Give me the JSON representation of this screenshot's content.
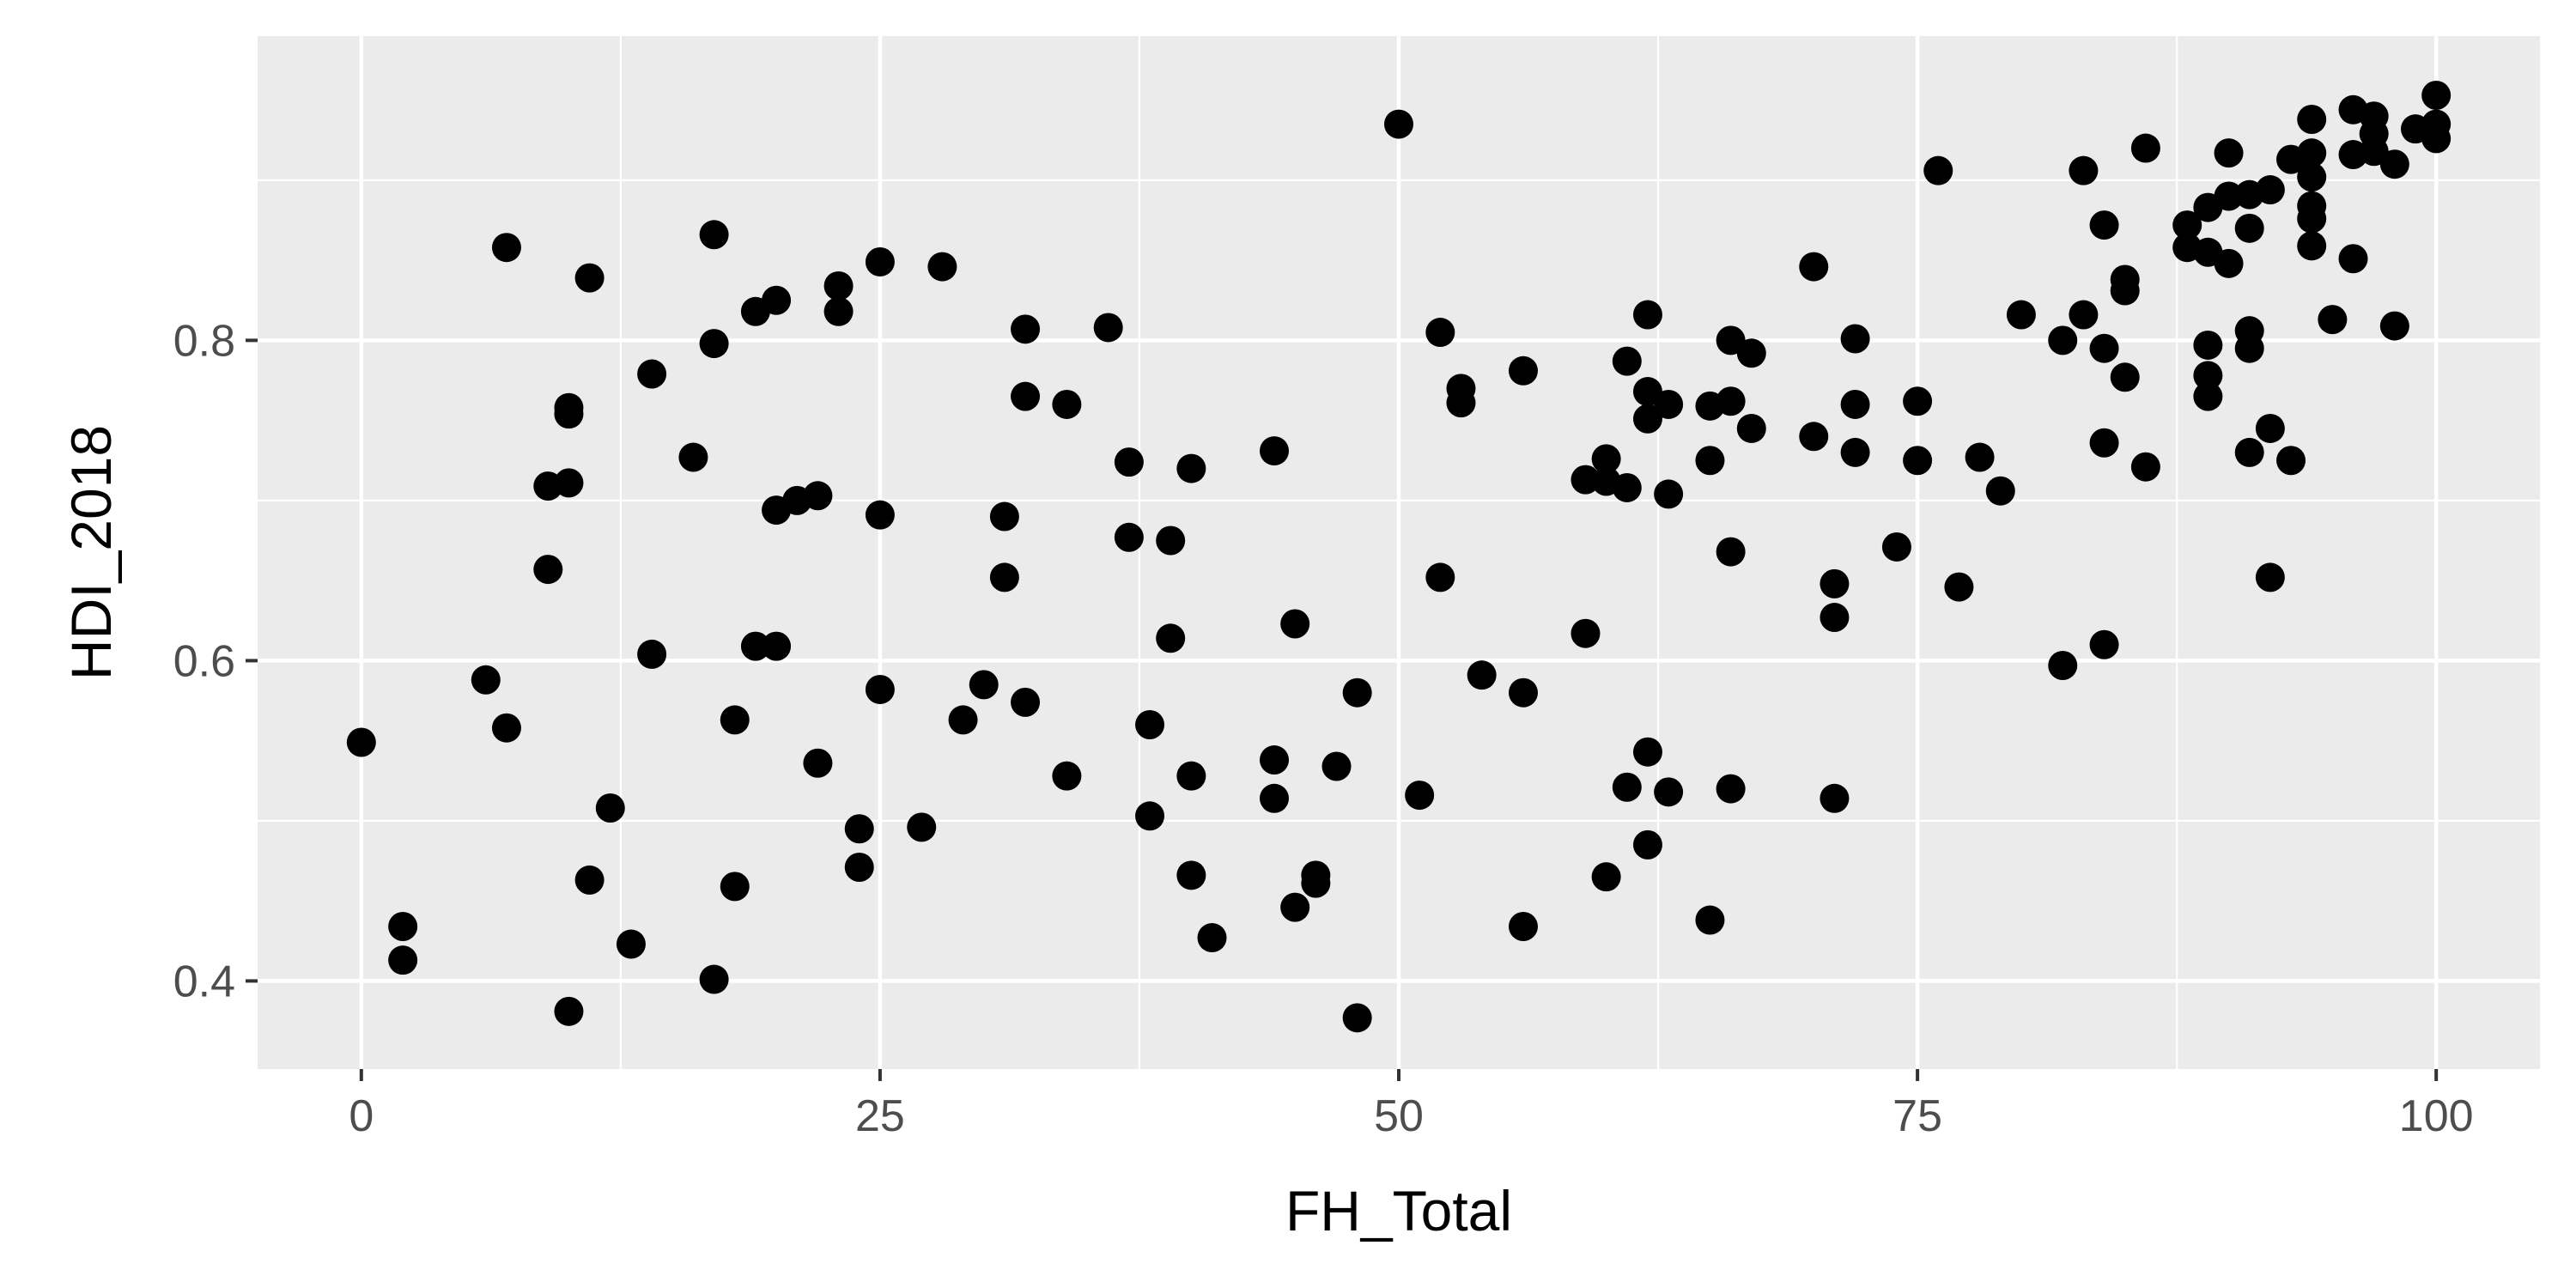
{
  "chart_data": {
    "type": "scatter",
    "title": "",
    "xlabel": "FH_Total",
    "ylabel": "HDI_2018",
    "xlim": [
      -5,
      105
    ],
    "ylim": [
      0.345,
      0.99
    ],
    "x_ticks": [
      0,
      25,
      50,
      75,
      100
    ],
    "y_ticks": [
      0.4,
      0.6,
      0.8
    ],
    "x_tick_labels": [
      "0",
      "25",
      "50",
      "75",
      "100"
    ],
    "y_tick_labels": [
      "0.4",
      "0.6",
      "0.8"
    ],
    "grid": true,
    "panel_background": "#ebebeb",
    "grid_color": "#ffffff",
    "point_color": "#000000",
    "points": [
      [
        0,
        0.549
      ],
      [
        2,
        0.434
      ],
      [
        2,
        0.413
      ],
      [
        6,
        0.588
      ],
      [
        7,
        0.558
      ],
      [
        7,
        0.858
      ],
      [
        9,
        0.709
      ],
      [
        9,
        0.657
      ],
      [
        10,
        0.758
      ],
      [
        10,
        0.754
      ],
      [
        10,
        0.711
      ],
      [
        10,
        0.381
      ],
      [
        11,
        0.839
      ],
      [
        11,
        0.463
      ],
      [
        12,
        0.508
      ],
      [
        13,
        0.423
      ],
      [
        14,
        0.779
      ],
      [
        14,
        0.604
      ],
      [
        16,
        0.727
      ],
      [
        17,
        0.866
      ],
      [
        17,
        0.798
      ],
      [
        17,
        0.401
      ],
      [
        18,
        0.563
      ],
      [
        18,
        0.459
      ],
      [
        19,
        0.818
      ],
      [
        19,
        0.609
      ],
      [
        20,
        0.825
      ],
      [
        20,
        0.694
      ],
      [
        20,
        0.609
      ],
      [
        21,
        0.7
      ],
      [
        22,
        0.703
      ],
      [
        22,
        0.536
      ],
      [
        23,
        0.834
      ],
      [
        23,
        0.818
      ],
      [
        24,
        0.495
      ],
      [
        24,
        0.471
      ],
      [
        25,
        0.849
      ],
      [
        25,
        0.691
      ],
      [
        25,
        0.582
      ],
      [
        27,
        0.496
      ],
      [
        28,
        0.846
      ],
      [
        29,
        0.563
      ],
      [
        30,
        0.585
      ],
      [
        31,
        0.69
      ],
      [
        31,
        0.652
      ],
      [
        32,
        0.807
      ],
      [
        32,
        0.765
      ],
      [
        32,
        0.574
      ],
      [
        34,
        0.76
      ],
      [
        34,
        0.528
      ],
      [
        36,
        0.808
      ],
      [
        37,
        0.724
      ],
      [
        37,
        0.677
      ],
      [
        38,
        0.56
      ],
      [
        38,
        0.503
      ],
      [
        39,
        0.675
      ],
      [
        39,
        0.614
      ],
      [
        40,
        0.72
      ],
      [
        40,
        0.528
      ],
      [
        40,
        0.466
      ],
      [
        41,
        0.427
      ],
      [
        44,
        0.731
      ],
      [
        44,
        0.538
      ],
      [
        44,
        0.514
      ],
      [
        45,
        0.623
      ],
      [
        45,
        0.446
      ],
      [
        46,
        0.466
      ],
      [
        46,
        0.461
      ],
      [
        47,
        0.534
      ],
      [
        48,
        0.58
      ],
      [
        48,
        0.377
      ],
      [
        50,
        0.935
      ],
      [
        51,
        0.516
      ],
      [
        52,
        0.805
      ],
      [
        52,
        0.652
      ],
      [
        53,
        0.77
      ],
      [
        53,
        0.761
      ],
      [
        54,
        0.591
      ],
      [
        56,
        0.781
      ],
      [
        56,
        0.58
      ],
      [
        56,
        0.434
      ],
      [
        59,
        0.713
      ],
      [
        59,
        0.617
      ],
      [
        60,
        0.726
      ],
      [
        60,
        0.712
      ],
      [
        60,
        0.465
      ],
      [
        61,
        0.787
      ],
      [
        61,
        0.708
      ],
      [
        61,
        0.521
      ],
      [
        62,
        0.816
      ],
      [
        62,
        0.768
      ],
      [
        62,
        0.751
      ],
      [
        62,
        0.543
      ],
      [
        62,
        0.485
      ],
      [
        63,
        0.76
      ],
      [
        63,
        0.704
      ],
      [
        63,
        0.518
      ],
      [
        65,
        0.759
      ],
      [
        65,
        0.725
      ],
      [
        65,
        0.438
      ],
      [
        66,
        0.8
      ],
      [
        66,
        0.762
      ],
      [
        66,
        0.668
      ],
      [
        66,
        0.52
      ],
      [
        67,
        0.792
      ],
      [
        67,
        0.745
      ],
      [
        70,
        0.846
      ],
      [
        70,
        0.74
      ],
      [
        71,
        0.648
      ],
      [
        71,
        0.627
      ],
      [
        71,
        0.514
      ],
      [
        72,
        0.801
      ],
      [
        72,
        0.76
      ],
      [
        72,
        0.73
      ],
      [
        74,
        0.671
      ],
      [
        75,
        0.762
      ],
      [
        75,
        0.725
      ],
      [
        76,
        0.906
      ],
      [
        77,
        0.646
      ],
      [
        78,
        0.727
      ],
      [
        79,
        0.706
      ],
      [
        80,
        0.816
      ],
      [
        82,
        0.8
      ],
      [
        82,
        0.597
      ],
      [
        83,
        0.906
      ],
      [
        83,
        0.816
      ],
      [
        84,
        0.872
      ],
      [
        84,
        0.795
      ],
      [
        84,
        0.736
      ],
      [
        84,
        0.61
      ],
      [
        85,
        0.838
      ],
      [
        85,
        0.831
      ],
      [
        85,
        0.777
      ],
      [
        86,
        0.92
      ],
      [
        86,
        0.721
      ],
      [
        88,
        0.872
      ],
      [
        88,
        0.858
      ],
      [
        89,
        0.883
      ],
      [
        89,
        0.855
      ],
      [
        89,
        0.797
      ],
      [
        89,
        0.778
      ],
      [
        89,
        0.765
      ],
      [
        90,
        0.917
      ],
      [
        90,
        0.89
      ],
      [
        90,
        0.848
      ],
      [
        91,
        0.891
      ],
      [
        91,
        0.87
      ],
      [
        91,
        0.806
      ],
      [
        91,
        0.795
      ],
      [
        91,
        0.73
      ],
      [
        92,
        0.894
      ],
      [
        92,
        0.745
      ],
      [
        92,
        0.652
      ],
      [
        93,
        0.913
      ],
      [
        93,
        0.725
      ],
      [
        94,
        0.938
      ],
      [
        94,
        0.917
      ],
      [
        94,
        0.902
      ],
      [
        94,
        0.884
      ],
      [
        94,
        0.876
      ],
      [
        94,
        0.859
      ],
      [
        95,
        0.813
      ],
      [
        96,
        0.944
      ],
      [
        96,
        0.916
      ],
      [
        96,
        0.851
      ],
      [
        97,
        0.94
      ],
      [
        97,
        0.929
      ],
      [
        97,
        0.918
      ],
      [
        98,
        0.91
      ],
      [
        98,
        0.809
      ],
      [
        99,
        0.932
      ],
      [
        100,
        0.953
      ],
      [
        100,
        0.935
      ],
      [
        100,
        0.926
      ]
    ]
  }
}
